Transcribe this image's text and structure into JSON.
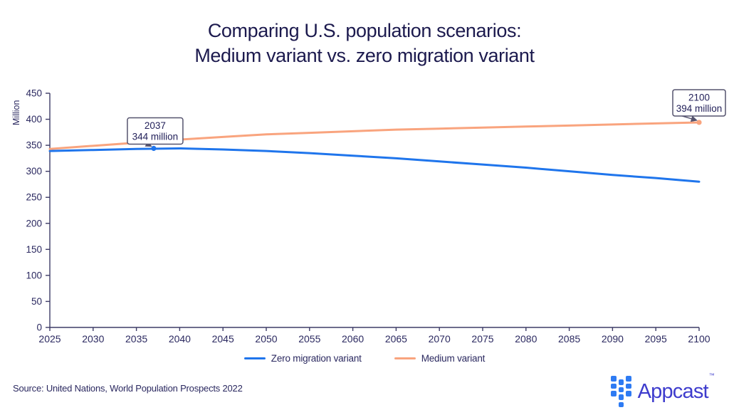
{
  "title": {
    "line1": "Comparing U.S. population scenarios:",
    "line2": "Medium variant vs. zero migration variant"
  },
  "chart_data": {
    "type": "line",
    "title": "Comparing U.S. population scenarios: Medium variant vs. zero migration variant",
    "xlabel": "",
    "ylabel": "Million",
    "x_range": [
      2025,
      2100
    ],
    "ylim": [
      0,
      450
    ],
    "yticks": [
      0,
      50,
      100,
      150,
      200,
      250,
      300,
      350,
      400,
      450
    ],
    "categories": [
      2025,
      2030,
      2035,
      2040,
      2045,
      2050,
      2055,
      2060,
      2065,
      2070,
      2075,
      2080,
      2085,
      2090,
      2095,
      2100
    ],
    "grid": false,
    "legend_position": "bottom",
    "series": [
      {
        "name": "Zero migration variant",
        "color": "#1f75ec",
        "values": [
          339,
          341,
          343,
          344,
          342,
          339,
          335,
          330,
          325,
          319,
          313,
          307,
          300,
          293,
          287,
          280
        ]
      },
      {
        "name": "Medium variant",
        "color": "#f9a47e",
        "values": [
          343,
          349,
          355,
          361,
          366,
          371,
          374,
          377,
          380,
          382,
          384,
          386,
          388,
          390,
          392,
          394
        ]
      }
    ],
    "annotations": [
      {
        "year": 2037,
        "value": 344,
        "series": "Zero migration variant",
        "lines": [
          "2037",
          "344 million"
        ]
      },
      {
        "year": 2100,
        "value": 394,
        "series": "Medium variant",
        "lines": [
          "2100",
          "394 million"
        ]
      }
    ]
  },
  "footer": {
    "source": "Source: United Nations, World Population Prospects 2022",
    "brand": "Appcast",
    "trademark": "™"
  },
  "colors": {
    "title_text": "#1c1a4e",
    "axis_text": "#2b2960",
    "axis_line": "#3d3b66",
    "zero_migration_line": "#1f75ec",
    "medium_variant_line": "#f9a47e",
    "annotation_border": "#55536e",
    "appcast_icon_blue": "#2e7bf3",
    "appcast_text": "#3e3ccd",
    "background": "#ffffff"
  }
}
